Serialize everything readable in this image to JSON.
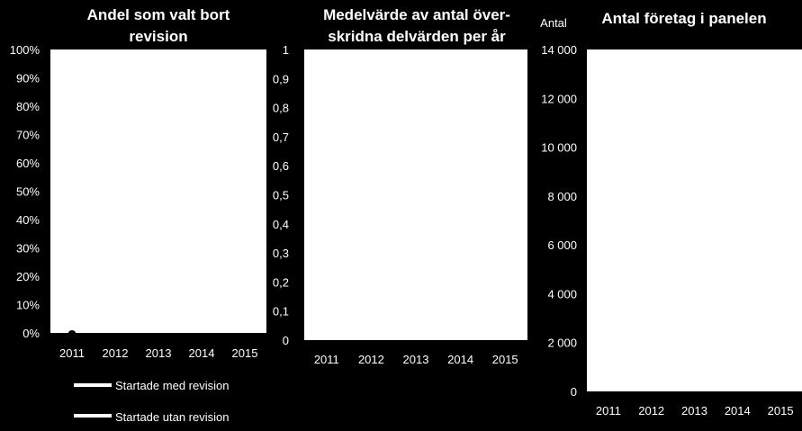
{
  "chart_data": [
    {
      "type": "line",
      "title": "Andel som valt bort revision",
      "categories": [
        "2011",
        "2012",
        "2013",
        "2014",
        "2015"
      ],
      "y_ticks": [
        "0%",
        "10%",
        "20%",
        "30%",
        "40%",
        "50%",
        "60%",
        "70%",
        "80%",
        "90%",
        "100%"
      ],
      "ylim": [
        0,
        1
      ],
      "series": [
        {
          "name": "Startade med revision",
          "color": "#ffffff",
          "values": [
            0,
            null,
            null,
            null,
            null
          ]
        },
        {
          "name": "Startade utan revision",
          "color": "#ffffff",
          "values": [
            null,
            null,
            null,
            null,
            null
          ]
        }
      ],
      "legend": "bottom",
      "grid": false
    },
    {
      "type": "line",
      "title": "Medelvärde av antal över-skridna delvärden per år",
      "categories": [
        "2011",
        "2012",
        "2013",
        "2014",
        "2015"
      ],
      "y_ticks": [
        "0",
        "0,1",
        "0,2",
        "0,3",
        "0,4",
        "0,5",
        "0,6",
        "0,7",
        "0,8",
        "0,9",
        "1"
      ],
      "ylim": [
        0,
        1
      ],
      "series": [],
      "grid": false
    },
    {
      "type": "bar",
      "title": "Antal företag i panelen",
      "ylabel": "Antal",
      "categories": [
        "2011",
        "2012",
        "2013",
        "2014",
        "2015"
      ],
      "y_ticks": [
        "0",
        "2 000",
        "4 000",
        "6 000",
        "8 000",
        "10 000",
        "12 000",
        "14 000"
      ],
      "ylim": [
        0,
        14000
      ],
      "series": [],
      "grid": false
    }
  ]
}
